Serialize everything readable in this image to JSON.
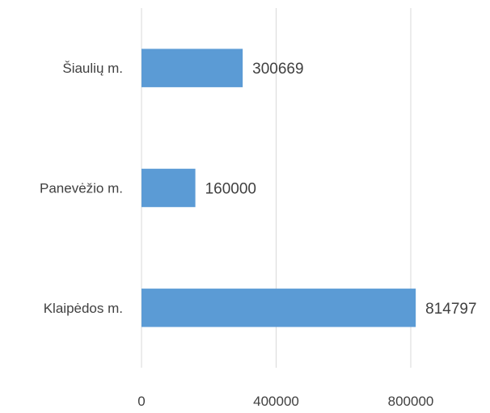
{
  "chart_data": {
    "type": "bar",
    "orientation": "horizontal",
    "categories": [
      "Šiaulių m.",
      "Panevėžio m.",
      "Klaipėdos m."
    ],
    "values": [
      300669,
      160000,
      814797
    ],
    "value_labels": [
      "300669",
      "160000",
      "814797"
    ],
    "x_ticks": [
      "0",
      "400000",
      "800000"
    ],
    "xlim": [
      0,
      800000
    ],
    "grid": true,
    "legend": "none",
    "colors": {
      "bar": "#5b9bd5",
      "grid": "#d9d9d9",
      "text": "#404040"
    }
  }
}
